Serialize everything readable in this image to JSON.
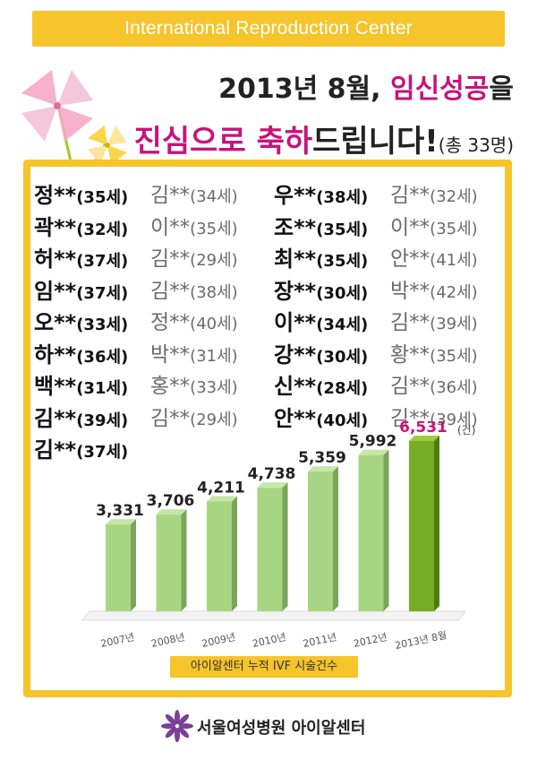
{
  "banner": {
    "title": "International Reproduction Center"
  },
  "headline": {
    "line1_prefix": "2013년 8월, ",
    "line1_highlight": "임신성공",
    "line1_suffix": "을",
    "line2_highlight1": "진심으로 ",
    "line2_highlight2": "축하",
    "line2_rest": "드립니다!",
    "line2_count": "(총 33명)"
  },
  "names": [
    [
      "정**(35세)",
      "김**(34세)",
      "우**(38세)",
      "김**(32세)"
    ],
    [
      "곽**(32세)",
      "이**(35세)",
      "조**(35세)",
      "이**(35세)"
    ],
    [
      "허**(37세)",
      "김**(29세)",
      "최**(35세)",
      "안**(41세)"
    ],
    [
      "임**(37세)",
      "김**(38세)",
      "장**(30세)",
      "박**(42세)"
    ],
    [
      "오**(33세)",
      "정**(40세)",
      "이**(34세)",
      "김**(39세)"
    ],
    [
      "하**(36세)",
      "박**(31세)",
      "강**(30세)",
      "황**(35세)"
    ],
    [
      "백**(31세)",
      "홍**(33세)",
      "신**(28세)",
      "김**(36세)"
    ],
    [
      "김**(39세)",
      "김**(29세)",
      "안**(40세)",
      "김**(39세)"
    ],
    [
      "김**(37세)"
    ]
  ],
  "chart_data": {
    "type": "bar",
    "categories": [
      "2007년",
      "2008년",
      "2009년",
      "2010년",
      "2011년",
      "2012년",
      "2013년 8월"
    ],
    "values": [
      3331,
      3706,
      4211,
      4738,
      5359,
      5992,
      6531
    ],
    "value_labels": [
      "3,331",
      "3,706",
      "4,211",
      "4,738",
      "5,359",
      "5,992",
      "6,531"
    ],
    "unit": "(건)",
    "caption": "아이알센터 누적 IVF 시술건수",
    "colors": {
      "bar": "#a8d582",
      "bar_highlight": "#76ad25",
      "highlight_label": "#c8137a"
    }
  },
  "footer": {
    "org": "서울여성병원 아이알센터"
  },
  "colors": {
    "accent": "#f6c42b",
    "highlight": "#c8137a"
  }
}
